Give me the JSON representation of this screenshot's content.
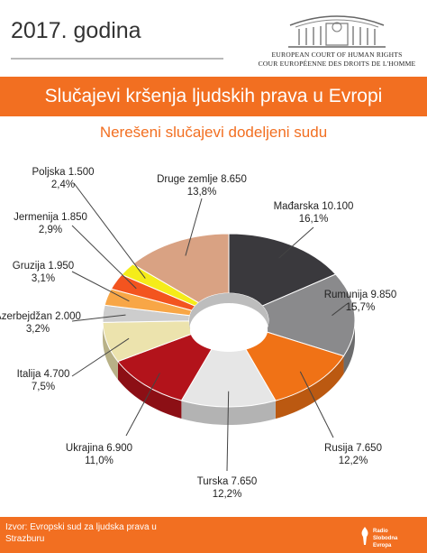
{
  "header": {
    "year": "2017. godina"
  },
  "court": {
    "line1": "EUROPEAN COURT OF HUMAN RIGHTS",
    "line2": "COUR EUROPÉENNE DES DROITS DE L'HOMME"
  },
  "banner": {
    "title": "Slučajevi kršenja ljudskih prava u Evropi"
  },
  "subtitle": "Nerešeni slučajevi dodeljeni sudu",
  "chart_data": {
    "type": "pie",
    "title": "Slučajevi kršenja ljudskih prava u Evropi",
    "subtitle": "Nerešeni slučajevi dodeljeni sudu",
    "slices": [
      {
        "name": "Mađarska",
        "value": 10100,
        "value_label": "10.100",
        "percent": "16,1%",
        "color": "#3a393d"
      },
      {
        "name": "Rumunija",
        "value": 9850,
        "value_label": "9.850",
        "percent": "15,7%",
        "color": "#8a8a8c"
      },
      {
        "name": "Rusija",
        "value": 7650,
        "value_label": "7.650",
        "percent": "12,2%",
        "color": "#f07216"
      },
      {
        "name": "Turska",
        "value": 7650,
        "value_label": "7.650",
        "percent": "12,2%",
        "color": "#e6e6e6"
      },
      {
        "name": "Ukrajina",
        "value": 6900,
        "value_label": "6.900",
        "percent": "11,0%",
        "color": "#b3131b"
      },
      {
        "name": "Italija",
        "value": 4700,
        "value_label": "4.700",
        "percent": "7,5%",
        "color": "#ece3ad"
      },
      {
        "name": "Azerbejdžan",
        "value": 2000,
        "value_label": "2.000",
        "percent": "3,2%",
        "color": "#cdcdcd"
      },
      {
        "name": "Gruzija",
        "value": 1950,
        "value_label": "1.950",
        "percent": "3,1%",
        "color": "#f8a646"
      },
      {
        "name": "Jermenija",
        "value": 1850,
        "value_label": "1.850",
        "percent": "2,9%",
        "color": "#f3541f"
      },
      {
        "name": "Poljska",
        "value": 1500,
        "value_label": "1.500",
        "percent": "2,4%",
        "color": "#f5ec19"
      },
      {
        "name": "Druge zemlje",
        "value": 8650,
        "value_label": "8.650",
        "percent": "13,8%",
        "color": "#d9a283"
      }
    ]
  },
  "footer": {
    "source_line1": "Izvor: Evropski sud za ljudska prava u",
    "source_line2": "Strazburu",
    "logo_line1": "Radio Slobodna",
    "logo_line2": "Evropa"
  }
}
